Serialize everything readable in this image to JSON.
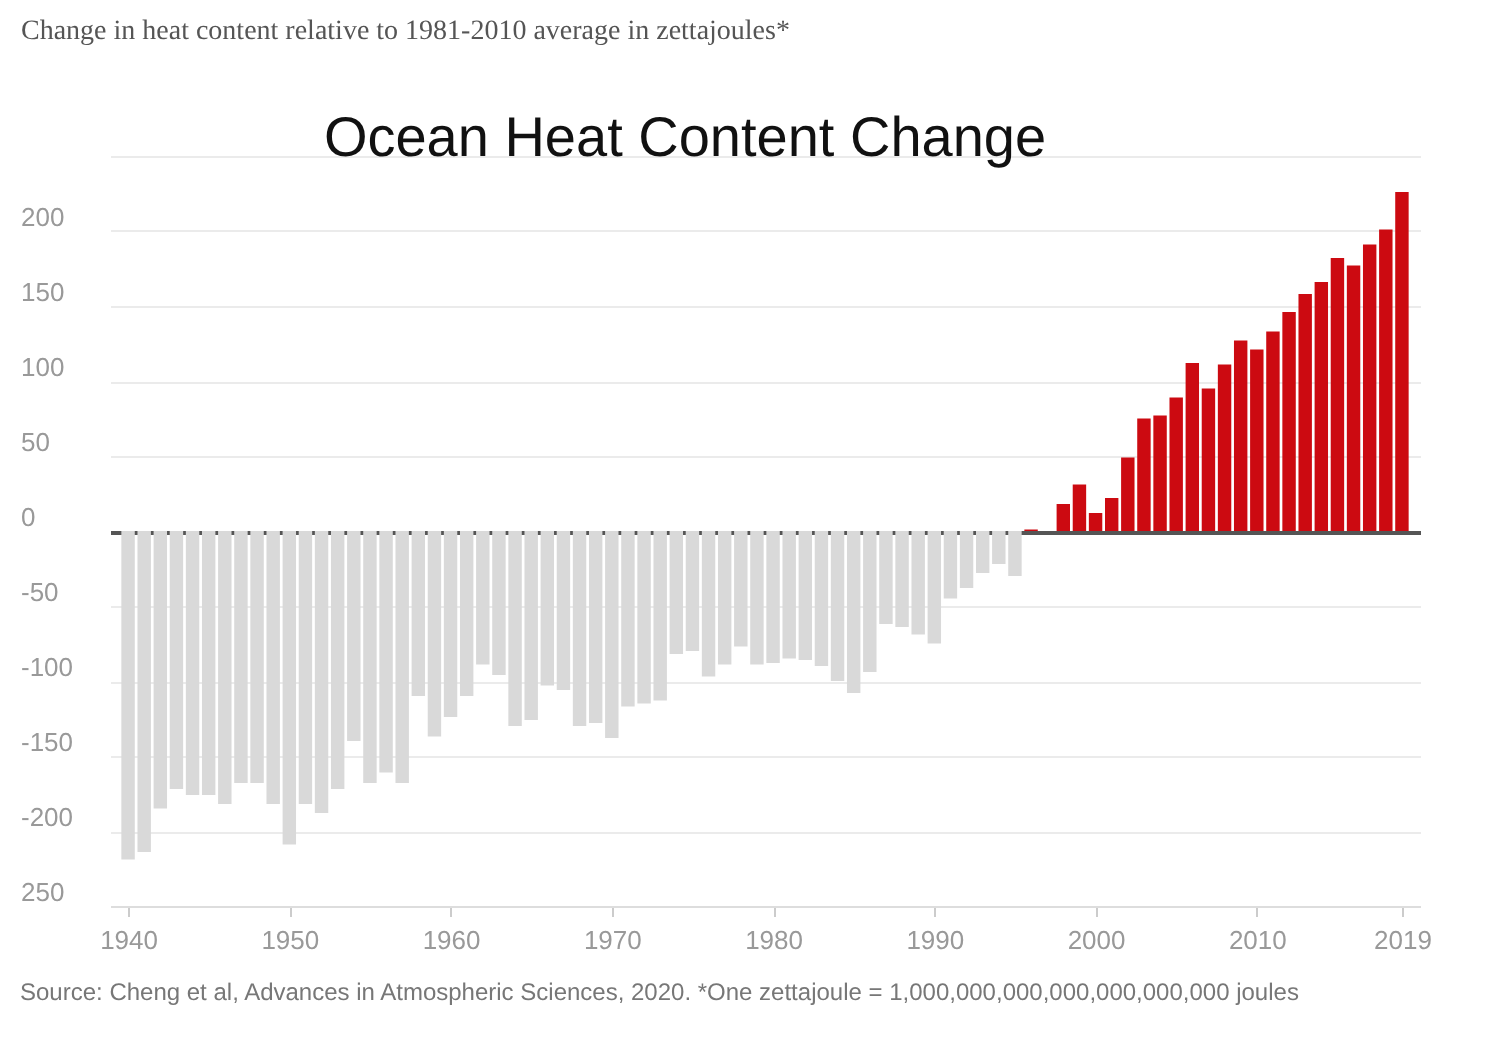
{
  "chart_data": {
    "type": "bar",
    "title": "Ocean Heat Content Change",
    "ylabel": "Change in heat content relative to 1981-2010 average in zettajoules*",
    "x": [
      1940,
      1941,
      1942,
      1943,
      1944,
      1945,
      1946,
      1947,
      1948,
      1949,
      1950,
      1951,
      1952,
      1953,
      1954,
      1955,
      1956,
      1957,
      1958,
      1959,
      1960,
      1961,
      1962,
      1963,
      1964,
      1965,
      1966,
      1967,
      1968,
      1969,
      1970,
      1971,
      1972,
      1973,
      1974,
      1975,
      1976,
      1977,
      1978,
      1979,
      1980,
      1981,
      1982,
      1983,
      1984,
      1985,
      1986,
      1987,
      1988,
      1989,
      1990,
      1991,
      1992,
      1993,
      1994,
      1995,
      1996,
      1997,
      1998,
      1999,
      2000,
      2001,
      2002,
      2003,
      2004,
      2005,
      2006,
      2007,
      2008,
      2009,
      2010,
      2011,
      2012,
      2013,
      2014,
      2015,
      2016,
      2017,
      2018,
      2019
    ],
    "values": [
      -219,
      -214,
      -185,
      -172,
      -176,
      -176,
      -182,
      -168,
      -168,
      -182,
      -209,
      -182,
      -188,
      -172,
      -140,
      -168,
      -161,
      -168,
      -110,
      -137,
      -124,
      -110,
      -89,
      -96,
      -130,
      -126,
      -103,
      -106,
      -130,
      -128,
      -138,
      -117,
      -115,
      -113,
      -82,
      -80,
      -97,
      -89,
      -77,
      -89,
      -88,
      -85,
      -86,
      -90,
      -100,
      -108,
      -94,
      -62,
      -64,
      -69,
      -75,
      -45,
      -38,
      -28,
      -22,
      -30,
      1,
      0,
      18,
      31,
      12,
      22,
      49,
      75,
      77,
      89,
      112,
      95,
      111,
      127,
      121,
      133,
      146,
      158,
      166,
      182,
      177,
      191,
      201,
      226
    ],
    "colors": [
      "#d9d9d9",
      "#d9d9d9",
      "#d9d9d9",
      "#d9d9d9",
      "#d9d9d9",
      "#d9d9d9",
      "#d9d9d9",
      "#d9d9d9",
      "#d9d9d9",
      "#d9d9d9",
      "#d9d9d9",
      "#d9d9d9",
      "#d9d9d9",
      "#d9d9d9",
      "#d9d9d9",
      "#d9d9d9",
      "#d9d9d9",
      "#d9d9d9",
      "#d9d9d9",
      "#d9d9d9",
      "#d9d9d9",
      "#d9d9d9",
      "#d9d9d9",
      "#d9d9d9",
      "#d9d9d9",
      "#d9d9d9",
      "#d9d9d9",
      "#d9d9d9",
      "#d9d9d9",
      "#d9d9d9",
      "#d9d9d9",
      "#d9d9d9",
      "#d9d9d9",
      "#d9d9d9",
      "#d9d9d9",
      "#d9d9d9",
      "#d9d9d9",
      "#d9d9d9",
      "#d9d9d9",
      "#d9d9d9",
      "#d9d9d9",
      "#d9d9d9",
      "#d9d9d9",
      "#d9d9d9",
      "#d9d9d9",
      "#d9d9d9",
      "#d9d9d9",
      "#d9d9d9",
      "#d9d9d9",
      "#d9d9d9",
      "#d9d9d9",
      "#d9d9d9",
      "#d9d9d9",
      "#d9d9d9",
      "#d9d9d9",
      "#d9d9d9",
      "#cc0a11",
      "#cc0a11",
      "#cc0a11",
      "#cc0a11",
      "#cc0a11",
      "#cc0a11",
      "#cc0a11",
      "#cc0a11",
      "#cc0a11",
      "#cc0a11",
      "#cc0a11",
      "#cc0a11",
      "#cc0a11",
      "#cc0a11",
      "#cc0a11",
      "#cc0a11",
      "#cc0a11",
      "#cc0a11",
      "#cc0a11",
      "#cc0a11",
      "#cc0a11",
      "#cc0a11",
      "#cc0a11",
      "#cc0a11"
    ],
    "xlim": [
      1939.5,
      2019.5
    ],
    "xticks": [
      1940,
      1950,
      1960,
      1970,
      1980,
      1990,
      2000,
      2010,
      2019
    ],
    "ylim": [
      -250,
      250
    ],
    "yticks": [
      {
        "value": -250,
        "label": "250"
      },
      -200,
      -150,
      -100,
      -50,
      0,
      50,
      100,
      150,
      200,
      {
        "value": 250,
        "label": null
      }
    ],
    "grid": "y",
    "annotations": [
      "Source: Cheng et al, Advances in Atmospheric Sciences, 2020. *One zettajoule = 1,000,000,000,000,000,000,000 joules"
    ]
  }
}
